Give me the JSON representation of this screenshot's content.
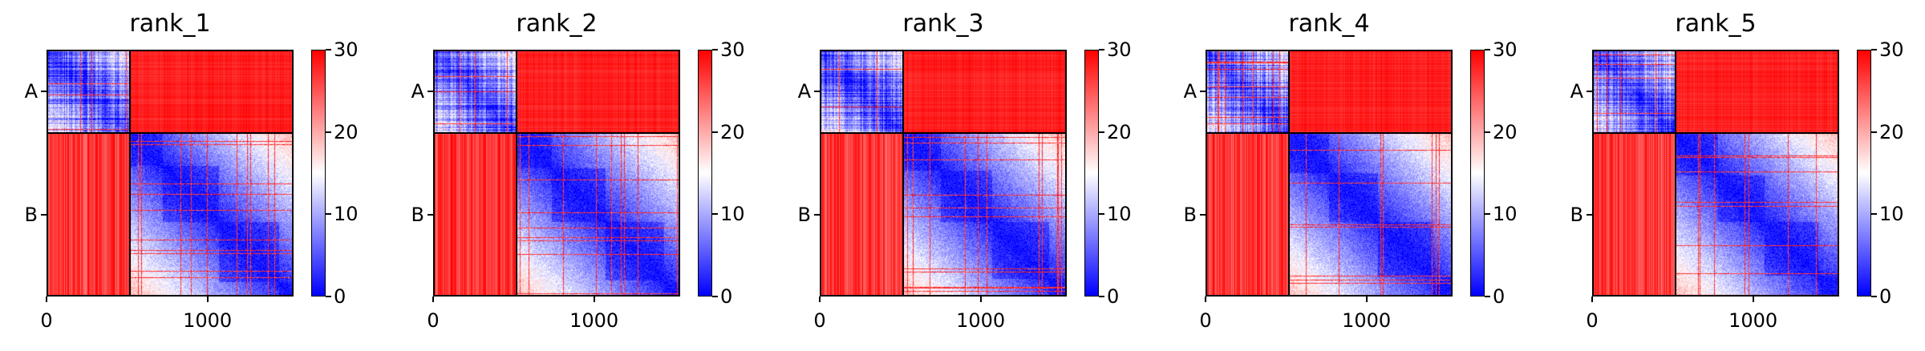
{
  "chart_data": [
    {
      "type": "heatmap",
      "title": "rank_1",
      "row_labels": [
        "A",
        "B"
      ],
      "chain_boundaries": [
        0,
        520,
        1535
      ],
      "xticks": [
        0,
        1000
      ],
      "xlim": [
        0,
        1535
      ],
      "colorbar": {
        "min": 0,
        "max": 30,
        "ticks": [
          0,
          10,
          20,
          30
        ],
        "cmap": "bwr",
        "colors": [
          "#0000ff",
          "#ffffff",
          "#ff0000"
        ]
      }
    },
    {
      "type": "heatmap",
      "title": "rank_2",
      "row_labels": [
        "A",
        "B"
      ],
      "chain_boundaries": [
        0,
        520,
        1535
      ],
      "xticks": [
        0,
        1000
      ],
      "xlim": [
        0,
        1535
      ],
      "colorbar": {
        "min": 0,
        "max": 30,
        "ticks": [
          0,
          10,
          20,
          30
        ],
        "cmap": "bwr",
        "colors": [
          "#0000ff",
          "#ffffff",
          "#ff0000"
        ]
      }
    },
    {
      "type": "heatmap",
      "title": "rank_3",
      "row_labels": [
        "A",
        "B"
      ],
      "chain_boundaries": [
        0,
        520,
        1535
      ],
      "xticks": [
        0,
        1000
      ],
      "xlim": [
        0,
        1535
      ],
      "colorbar": {
        "min": 0,
        "max": 30,
        "ticks": [
          0,
          10,
          20,
          30
        ],
        "cmap": "bwr",
        "colors": [
          "#0000ff",
          "#ffffff",
          "#ff0000"
        ]
      }
    },
    {
      "type": "heatmap",
      "title": "rank_4",
      "row_labels": [
        "A",
        "B"
      ],
      "chain_boundaries": [
        0,
        520,
        1535
      ],
      "xticks": [
        0,
        1000
      ],
      "xlim": [
        0,
        1535
      ],
      "colorbar": {
        "min": 0,
        "max": 30,
        "ticks": [
          0,
          10,
          20,
          30
        ],
        "cmap": "bwr",
        "colors": [
          "#0000ff",
          "#ffffff",
          "#ff0000"
        ]
      }
    },
    {
      "type": "heatmap",
      "title": "rank_5",
      "row_labels": [
        "A",
        "B"
      ],
      "chain_boundaries": [
        0,
        520,
        1535
      ],
      "xticks": [
        0,
        1000
      ],
      "xlim": [
        0,
        1535
      ],
      "colorbar": {
        "min": 0,
        "max": 30,
        "ticks": [
          0,
          10,
          20,
          30
        ],
        "cmap": "bwr",
        "colors": [
          "#0000ff",
          "#ffffff",
          "#ff0000"
        ]
      }
    }
  ]
}
